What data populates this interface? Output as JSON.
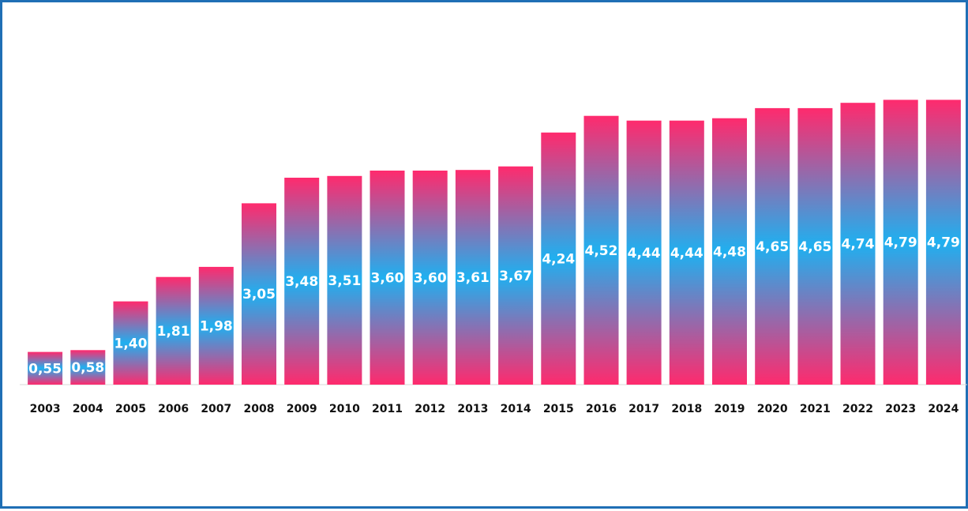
{
  "chart_data": {
    "type": "bar",
    "categories": [
      "2003",
      "2004",
      "2005",
      "2006",
      "2007",
      "2008",
      "2009",
      "2010",
      "2011",
      "2012",
      "2013",
      "2014",
      "2015",
      "2016",
      "2017",
      "2018",
      "2019",
      "2020",
      "2021",
      "2022",
      "2023",
      "2024"
    ],
    "values": [
      0.55,
      0.58,
      1.4,
      1.81,
      1.98,
      3.05,
      3.48,
      3.51,
      3.6,
      3.6,
      3.61,
      3.67,
      4.24,
      4.52,
      4.44,
      4.44,
      4.48,
      4.65,
      4.65,
      4.74,
      4.79,
      4.79
    ],
    "data_labels": [
      "0,55",
      "0,58",
      "1,40",
      "1,81",
      "1,98",
      "3,05",
      "3,48",
      "3,51",
      "3,60",
      "3,60",
      "3,61",
      "3,67",
      "4,24",
      "4,52",
      "4,44",
      "4,44",
      "4,48",
      "4,65",
      "4,65",
      "4,74",
      "4,79",
      "4,79"
    ],
    "title": "",
    "xlabel": "",
    "ylabel": "",
    "ylim": [
      0,
      5.3
    ],
    "grid": false,
    "bar_gradient_colors": [
      "#ff2a6d",
      "#1fb0f0",
      "#ff2a6d"
    ]
  }
}
